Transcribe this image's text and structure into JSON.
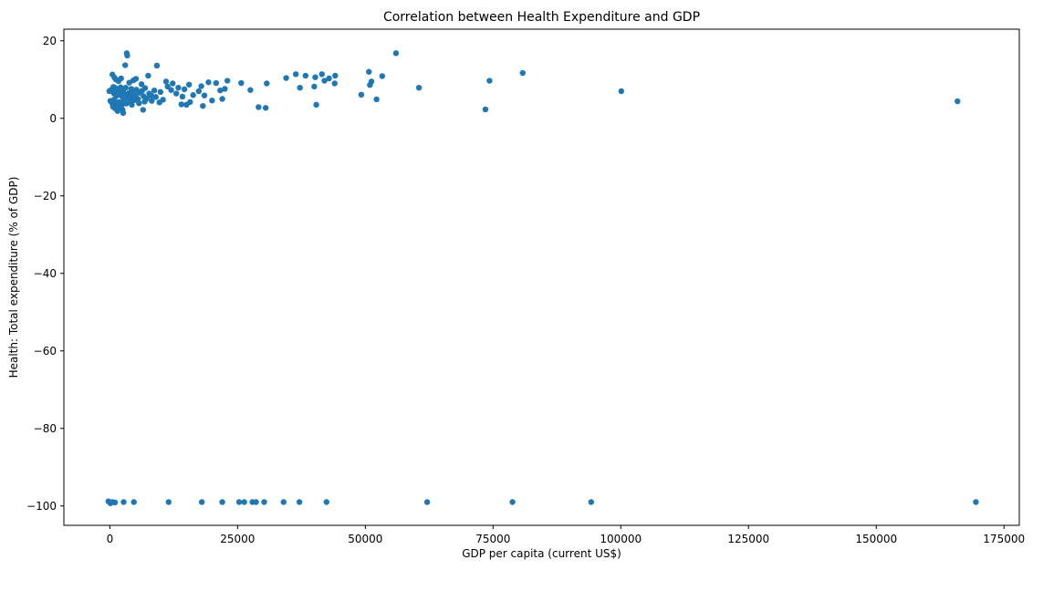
{
  "chart_data": {
    "type": "scatter",
    "title": "Correlation between Health Expenditure and GDP",
    "xlabel": "GDP per capita (current US$)",
    "ylabel": "Health: Total expenditure (% of GDP)",
    "xlim": [
      -9000,
      178000
    ],
    "ylim": [
      -105,
      23
    ],
    "xticks": [
      0,
      25000,
      50000,
      75000,
      100000,
      125000,
      150000,
      175000
    ],
    "yticks": [
      20,
      0,
      -20,
      -40,
      -60,
      -80,
      -100
    ],
    "xtick_labels": [
      "0",
      "25000",
      "50000",
      "75000",
      "100000",
      "125000",
      "150000",
      "175000"
    ],
    "ytick_labels": [
      "20",
      "0",
      "−20",
      "−40",
      "−60",
      "−80",
      "−100"
    ],
    "grid": false,
    "legend": "none",
    "marker_color": "#1f77b4",
    "points": [
      {
        "x": 3300,
        "y": 16.8
      },
      {
        "x": 3400,
        "y": 16.2
      },
      {
        "x": 56000,
        "y": 16.8
      },
      {
        "x": 3000,
        "y": 13.7
      },
      {
        "x": 9200,
        "y": 13.6
      },
      {
        "x": 80800,
        "y": 11.7
      },
      {
        "x": 50700,
        "y": 12.0
      },
      {
        "x": 500,
        "y": 11.3
      },
      {
        "x": 7500,
        "y": 11.0
      },
      {
        "x": 36400,
        "y": 11.4
      },
      {
        "x": 38300,
        "y": 11.0
      },
      {
        "x": 41500,
        "y": 11.4
      },
      {
        "x": 44100,
        "y": 11.0
      },
      {
        "x": 53300,
        "y": 10.9
      },
      {
        "x": 34500,
        "y": 10.4
      },
      {
        "x": 40200,
        "y": 10.6
      },
      {
        "x": 42900,
        "y": 10.3
      },
      {
        "x": 2200,
        "y": 10.3
      },
      {
        "x": 1200,
        "y": 10.0
      },
      {
        "x": 5100,
        "y": 10.2
      },
      {
        "x": 74300,
        "y": 9.7
      },
      {
        "x": 42000,
        "y": 9.7
      },
      {
        "x": 44000,
        "y": 9.0
      },
      {
        "x": 51200,
        "y": 9.5
      },
      {
        "x": 23000,
        "y": 9.7
      },
      {
        "x": 19300,
        "y": 9.3
      },
      {
        "x": 20800,
        "y": 9.1
      },
      {
        "x": 25700,
        "y": 9.1
      },
      {
        "x": 30700,
        "y": 9.0
      },
      {
        "x": 11000,
        "y": 9.5
      },
      {
        "x": 12300,
        "y": 9.0
      },
      {
        "x": 3800,
        "y": 9.2
      },
      {
        "x": 6200,
        "y": 8.8
      },
      {
        "x": 15500,
        "y": 8.7
      },
      {
        "x": 17900,
        "y": 8.3
      },
      {
        "x": 37200,
        "y": 7.9
      },
      {
        "x": 40000,
        "y": 8.2
      },
      {
        "x": 50900,
        "y": 8.6
      },
      {
        "x": 60500,
        "y": 7.9
      },
      {
        "x": 100100,
        "y": 7.0
      },
      {
        "x": 27500,
        "y": 7.3
      },
      {
        "x": 22500,
        "y": 7.6
      },
      {
        "x": 21600,
        "y": 7.2
      },
      {
        "x": 17400,
        "y": 7.0
      },
      {
        "x": 14600,
        "y": 7.5
      },
      {
        "x": 13400,
        "y": 7.9
      },
      {
        "x": 12000,
        "y": 7.3
      },
      {
        "x": 11300,
        "y": 8.2
      },
      {
        "x": 9900,
        "y": 6.8
      },
      {
        "x": 8700,
        "y": 7.2
      },
      {
        "x": 7700,
        "y": 6.4
      },
      {
        "x": 6900,
        "y": 7.8
      },
      {
        "x": 6300,
        "y": 7.1
      },
      {
        "x": 5800,
        "y": 6.6
      },
      {
        "x": 5200,
        "y": 7.4
      },
      {
        "x": 4700,
        "y": 6.9
      },
      {
        "x": 4200,
        "y": 7.6
      },
      {
        "x": 3700,
        "y": 6.5
      },
      {
        "x": 3100,
        "y": 7.9
      },
      {
        "x": 2600,
        "y": 7.0
      },
      {
        "x": 2100,
        "y": 8.0
      },
      {
        "x": 1600,
        "y": 7.3
      },
      {
        "x": 1100,
        "y": 7.8
      },
      {
        "x": 700,
        "y": 8.1
      },
      {
        "x": 300,
        "y": 7.4
      },
      {
        "x": -100,
        "y": 7.0
      },
      {
        "x": 800,
        "y": 6.4
      },
      {
        "x": 1400,
        "y": 5.9
      },
      {
        "x": 1900,
        "y": 6.7
      },
      {
        "x": 2400,
        "y": 5.6
      },
      {
        "x": 2900,
        "y": 6.2
      },
      {
        "x": 3500,
        "y": 5.4
      },
      {
        "x": 4000,
        "y": 6.0
      },
      {
        "x": 4500,
        "y": 5.2
      },
      {
        "x": 5000,
        "y": 5.8
      },
      {
        "x": 5500,
        "y": 5.0
      },
      {
        "x": 6600,
        "y": 5.7
      },
      {
        "x": 7200,
        "y": 5.1
      },
      {
        "x": 8100,
        "y": 5.9
      },
      {
        "x": 9000,
        "y": 5.5
      },
      {
        "x": 10400,
        "y": 4.8
      },
      {
        "x": 13000,
        "y": 6.4
      },
      {
        "x": 14200,
        "y": 5.6
      },
      {
        "x": 16300,
        "y": 6.0
      },
      {
        "x": 18500,
        "y": 5.9
      },
      {
        "x": 22000,
        "y": 5.0
      },
      {
        "x": 52200,
        "y": 4.9
      },
      {
        "x": 49200,
        "y": 6.1
      },
      {
        "x": 165900,
        "y": 4.4
      },
      {
        "x": 20000,
        "y": 4.6
      },
      {
        "x": 15700,
        "y": 4.2
      },
      {
        "x": 14000,
        "y": 3.6
      },
      {
        "x": 9700,
        "y": 4.1
      },
      {
        "x": 8200,
        "y": 4.5
      },
      {
        "x": 6800,
        "y": 4.3
      },
      {
        "x": 5700,
        "y": 3.9
      },
      {
        "x": 4800,
        "y": 4.7
      },
      {
        "x": 4300,
        "y": 3.5
      },
      {
        "x": 3900,
        "y": 4.4
      },
      {
        "x": 3200,
        "y": 3.8
      },
      {
        "x": 2700,
        "y": 4.6
      },
      {
        "x": 2300,
        "y": 3.4
      },
      {
        "x": 1800,
        "y": 4.2
      },
      {
        "x": 1300,
        "y": 3.6
      },
      {
        "x": 900,
        "y": 4.9
      },
      {
        "x": 400,
        "y": 4.0
      },
      {
        "x": 100,
        "y": 4.5
      },
      {
        "x": 600,
        "y": 3.0
      },
      {
        "x": 1000,
        "y": 2.6
      },
      {
        "x": 1700,
        "y": 2.9
      },
      {
        "x": 2500,
        "y": 2.2
      },
      {
        "x": 6500,
        "y": 2.2
      },
      {
        "x": 18200,
        "y": 3.2
      },
      {
        "x": 15000,
        "y": 3.5
      },
      {
        "x": 40400,
        "y": 3.5
      },
      {
        "x": 29100,
        "y": 2.9
      },
      {
        "x": 30500,
        "y": 2.7
      },
      {
        "x": 73500,
        "y": 2.3
      },
      {
        "x": 2600,
        "y": 1.4
      },
      {
        "x": 1500,
        "y": 1.9
      },
      {
        "x": 1700,
        "y": 9.6
      },
      {
        "x": 900,
        "y": 10.5
      },
      {
        "x": 4600,
        "y": 9.8
      },
      {
        "x": -300,
        "y": -98.8
      },
      {
        "x": 100,
        "y": -99.3
      },
      {
        "x": 500,
        "y": -99.0
      },
      {
        "x": 1000,
        "y": -99.1
      },
      {
        "x": 2700,
        "y": -99.0
      },
      {
        "x": 4700,
        "y": -99.0
      },
      {
        "x": 11500,
        "y": -99.0
      },
      {
        "x": 18000,
        "y": -99.0
      },
      {
        "x": 22000,
        "y": -99.0
      },
      {
        "x": 25300,
        "y": -99.0
      },
      {
        "x": 26300,
        "y": -99.0
      },
      {
        "x": 27900,
        "y": -99.0
      },
      {
        "x": 28600,
        "y": -99.0
      },
      {
        "x": 30200,
        "y": -99.0
      },
      {
        "x": 34000,
        "y": -99.0
      },
      {
        "x": 37100,
        "y": -99.0
      },
      {
        "x": 42400,
        "y": -99.0
      },
      {
        "x": 62100,
        "y": -99.0
      },
      {
        "x": 78800,
        "y": -99.0
      },
      {
        "x": 94200,
        "y": -99.0
      },
      {
        "x": 169500,
        "y": -99.0
      }
    ]
  }
}
